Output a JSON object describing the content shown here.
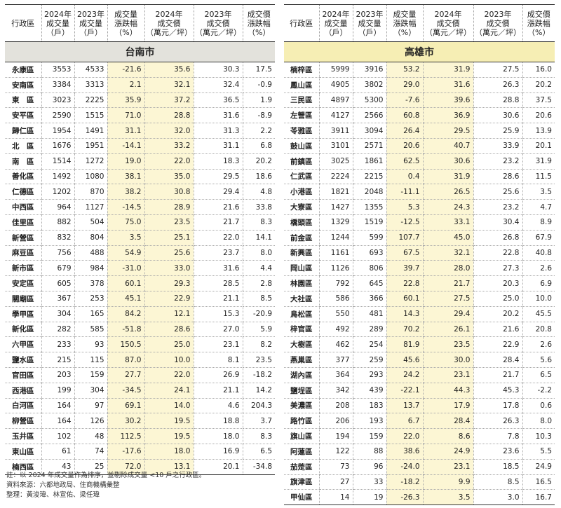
{
  "headers": [
    "行政區",
    "2024年\n成交量\n（戶）",
    "2023年\n成交量\n（戶）",
    "成交量\n漲跌幅\n（%）",
    "2024年\n成交價\n（萬元／坪）",
    "2023年\n成交價\n（萬元／坪）",
    "成交價\n漲跌幅\n（%）"
  ],
  "left": {
    "city": "台南市",
    "rows": [
      [
        "永康區",
        "3553",
        "4533",
        "-21.6",
        "35.6",
        "30.3",
        "17.5"
      ],
      [
        "安南區",
        "3384",
        "3313",
        "2.1",
        "32.1",
        "32.4",
        "-0.9"
      ],
      [
        "東　區",
        "3023",
        "2225",
        "35.9",
        "37.2",
        "36.5",
        "1.9"
      ],
      [
        "安平區",
        "2590",
        "1515",
        "71.0",
        "28.8",
        "31.6",
        "-8.9"
      ],
      [
        "歸仁區",
        "1954",
        "1491",
        "31.1",
        "32.0",
        "31.3",
        "2.2"
      ],
      [
        "北　區",
        "1676",
        "1951",
        "-14.1",
        "33.2",
        "31.1",
        "6.8"
      ],
      [
        "南　區",
        "1514",
        "1272",
        "19.0",
        "22.0",
        "18.3",
        "20.2"
      ],
      [
        "善化區",
        "1492",
        "1080",
        "38.1",
        "35.0",
        "29.5",
        "18.6"
      ],
      [
        "仁德區",
        "1202",
        "870",
        "38.2",
        "30.8",
        "29.4",
        "4.8"
      ],
      [
        "中西區",
        "964",
        "1127",
        "-14.5",
        "28.9",
        "21.6",
        "33.8"
      ],
      [
        "佳里區",
        "882",
        "504",
        "75.0",
        "23.5",
        "21.7",
        "8.3"
      ],
      [
        "新營區",
        "832",
        "804",
        "3.5",
        "25.1",
        "22.0",
        "14.1"
      ],
      [
        "麻豆區",
        "756",
        "488",
        "54.9",
        "25.6",
        "23.7",
        "8.0"
      ],
      [
        "新市區",
        "679",
        "984",
        "-31.0",
        "33.0",
        "31.6",
        "4.4"
      ],
      [
        "安定區",
        "605",
        "378",
        "60.1",
        "29.3",
        "28.5",
        "2.8"
      ],
      [
        "關廟區",
        "367",
        "253",
        "45.1",
        "22.9",
        "21.1",
        "8.5"
      ],
      [
        "學甲區",
        "304",
        "165",
        "84.2",
        "12.1",
        "15.3",
        "-20.9"
      ],
      [
        "新化區",
        "282",
        "585",
        "-51.8",
        "28.6",
        "27.0",
        "5.9"
      ],
      [
        "六甲區",
        "233",
        "93",
        "150.5",
        "25.0",
        "23.1",
        "8.2"
      ],
      [
        "鹽水區",
        "215",
        "115",
        "87.0",
        "10.0",
        "8.1",
        "23.5"
      ],
      [
        "官田區",
        "203",
        "159",
        "27.7",
        "22.0",
        "26.9",
        "-18.2"
      ],
      [
        "西港區",
        "199",
        "304",
        "-34.5",
        "24.1",
        "21.1",
        "14.2"
      ],
      [
        "白河區",
        "164",
        "97",
        "69.1",
        "14.0",
        "4.6",
        "204.3"
      ],
      [
        "柳營區",
        "164",
        "126",
        "30.2",
        "19.5",
        "18.8",
        "3.7"
      ],
      [
        "玉井區",
        "102",
        "48",
        "112.5",
        "19.5",
        "18.0",
        "8.3"
      ],
      [
        "東山區",
        "61",
        "74",
        "-17.6",
        "18.0",
        "16.9",
        "6.5"
      ],
      [
        "楠西區",
        "43",
        "25",
        "72.0",
        "13.1",
        "20.1",
        "-34.8"
      ]
    ]
  },
  "right": {
    "city": "高雄市",
    "rows": [
      [
        "楠梓區",
        "5999",
        "3916",
        "53.2",
        "31.9",
        "27.5",
        "16.0"
      ],
      [
        "鳳山區",
        "4905",
        "3802",
        "29.0",
        "31.6",
        "26.3",
        "20.2"
      ],
      [
        "三民區",
        "4897",
        "5300",
        "-7.6",
        "39.6",
        "28.8",
        "37.5"
      ],
      [
        "左營區",
        "4127",
        "2566",
        "60.8",
        "36.9",
        "30.6",
        "20.6"
      ],
      [
        "苓雅區",
        "3911",
        "3094",
        "26.4",
        "29.5",
        "25.9",
        "13.9"
      ],
      [
        "鼓山區",
        "3101",
        "2571",
        "20.6",
        "40.7",
        "33.9",
        "20.1"
      ],
      [
        "前鎮區",
        "3025",
        "1861",
        "62.5",
        "30.6",
        "23.2",
        "31.9"
      ],
      [
        "仁武區",
        "2224",
        "2215",
        "0.4",
        "31.9",
        "28.6",
        "11.5"
      ],
      [
        "小港區",
        "1821",
        "2048",
        "-11.1",
        "26.5",
        "25.6",
        "3.5"
      ],
      [
        "大寮區",
        "1427",
        "1355",
        "5.3",
        "24.3",
        "23.2",
        "4.7"
      ],
      [
        "橋頭區",
        "1329",
        "1519",
        "-12.5",
        "33.1",
        "30.4",
        "8.9"
      ],
      [
        "前金區",
        "1244",
        "599",
        "107.7",
        "45.0",
        "26.8",
        "67.9"
      ],
      [
        "新興區",
        "1161",
        "693",
        "67.5",
        "32.1",
        "22.8",
        "40.8"
      ],
      [
        "岡山區",
        "1126",
        "806",
        "39.7",
        "28.0",
        "27.3",
        "2.6"
      ],
      [
        "林園區",
        "792",
        "645",
        "22.8",
        "21.7",
        "20.3",
        "6.9"
      ],
      [
        "大社區",
        "586",
        "366",
        "60.1",
        "27.5",
        "25.0",
        "10.0"
      ],
      [
        "鳥松區",
        "550",
        "481",
        "14.3",
        "29.4",
        "20.2",
        "45.5"
      ],
      [
        "梓官區",
        "492",
        "289",
        "70.2",
        "26.1",
        "21.6",
        "20.8"
      ],
      [
        "大樹區",
        "462",
        "254",
        "81.9",
        "23.5",
        "22.9",
        "2.6"
      ],
      [
        "燕巢區",
        "377",
        "259",
        "45.6",
        "30.0",
        "28.4",
        "5.6"
      ],
      [
        "湖內區",
        "364",
        "293",
        "24.2",
        "23.1",
        "21.7",
        "6.5"
      ],
      [
        "鹽埕區",
        "342",
        "439",
        "-22.1",
        "44.3",
        "45.3",
        "-2.2"
      ],
      [
        "美濃區",
        "208",
        "183",
        "13.7",
        "17.9",
        "17.8",
        "0.6"
      ],
      [
        "路竹區",
        "206",
        "193",
        "6.7",
        "28.4",
        "26.3",
        "8.0"
      ],
      [
        "旗山區",
        "194",
        "159",
        "22.0",
        "8.6",
        "7.8",
        "10.3"
      ],
      [
        "阿蓮區",
        "122",
        "88",
        "38.6",
        "24.9",
        "23.6",
        "5.5"
      ],
      [
        "茄萣區",
        "73",
        "96",
        "-24.0",
        "23.1",
        "18.5",
        "24.9"
      ],
      [
        "旗津區",
        "27",
        "33",
        "-18.2",
        "9.9",
        "8.5",
        "16.5"
      ],
      [
        "甲仙區",
        "14",
        "19",
        "-26.3",
        "3.5",
        "3.0",
        "16.7"
      ]
    ]
  },
  "notes": [
    "註：以 2024 年成交量作為排序，並剔除成交量 <10 戶之行政區。",
    "資料來源：六都地政局、住商機構彙整",
    "整理：黃浚瑋、林宣佑、梁任瑋"
  ]
}
